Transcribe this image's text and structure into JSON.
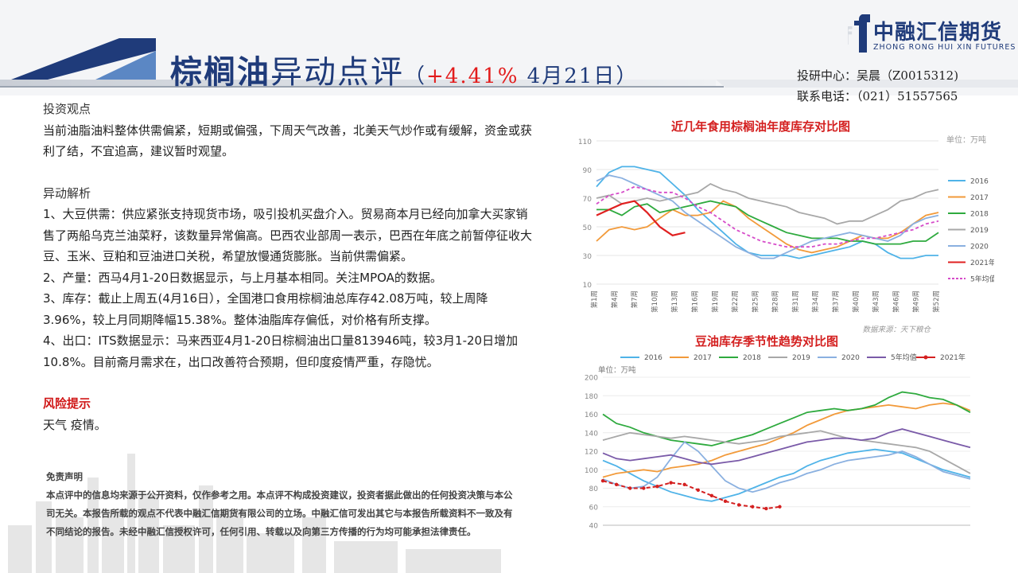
{
  "header": {
    "title_main": "棕榈油",
    "title_sub": "异动点评",
    "title_paren_open": "（",
    "title_pct": "+4.41%",
    "title_date": " 4月21日",
    "title_paren_close": "）"
  },
  "logo": {
    "cn": "中融汇信期货",
    "en": "ZHONG RONG HUI XIN FUTURES",
    "brand_color": "#1f3b7a"
  },
  "contact": {
    "line1": "投研中心：吴晨（Z0015312)",
    "line2": "联系电话：（021）51557565"
  },
  "content": {
    "view_title": "投资观点",
    "view_text": "当前油脂油料整体供需偏紧，短期或偏强，下周天气改善，北美天气炒作或有缓解，资金或获利了结，不宜追高，建议暂时观望。",
    "analysis_title": "异动解析",
    "items": [
      "1、大豆供需：供应紧张支持现货市场，吸引投机买盘介入。贸易商本月已经向加拿大买家销售了两船乌克兰油菜籽，该数量异常偏高。巴西农业部周一表示，巴西在年底之前暂停征收大豆、玉米、豆粕和豆油进口关税，希望放慢通货膨胀。当前供需偏紧。",
      "2、产量：西马4月1-20日数据显示，与上月基本相同。关注MPOA的数据。",
      "3、库存：截止上周五(4月16日），全国港口食用棕榈油总库存42.08万吨，较上周降3.96%，较上月同期降幅15.38%。整体油脂库存偏低，对价格有所支撑。",
      "4、出口：ITS数据显示：马来西亚4月1-20日棕榈油出口量813946吨，较3月1-20日增加10.8%。目前斋月需求在，出口改善符合预期，但印度疫情严重，存隐忧。"
    ],
    "risk_title": "风险提示",
    "risk_text": "天气 疫情。",
    "disclaimer_title": "免责声明",
    "disclaimer_text": "本点评中的信息均来源于公开资料，仅作参考之用。本点评不构成投资建议，投资者据此做出的任何投资决策与本公司无关。本报告所载的观点不代表中融汇信期货有限公司的立场。中融汇信可发出其它与本报告所载资料不一致及有不同结论的报告。未经中融汇信授权许可，任何引用、转载以及向第三方传播的行为均可能承担法律责任。"
  },
  "chart_data": [
    {
      "type": "line",
      "title": "近几年食用棕榈油年度库存对比图",
      "unit": "单位：万吨",
      "source": "数据来源：天下粮仓",
      "ylim": [
        10,
        110
      ],
      "yticks": [
        "10",
        "30",
        "50",
        "70",
        "90",
        "110"
      ],
      "xticks": [
        "第1周",
        "第4周",
        "第7周",
        "第10周",
        "第13周",
        "第16周",
        "第19周",
        "第22周",
        "第25周",
        "第28周",
        "第31周",
        "第34周",
        "第37周",
        "第40周",
        "第43周",
        "第46周",
        "第49周",
        "第52周"
      ],
      "series": [
        {
          "name": "2016",
          "color": "#4fb3e8",
          "dash": false,
          "values": [
            78,
            88,
            92,
            92,
            90,
            88,
            80,
            72,
            62,
            54,
            46,
            38,
            32,
            30,
            30,
            30,
            28,
            30,
            32,
            34,
            36,
            40,
            38,
            32,
            28,
            28,
            30,
            30
          ]
        },
        {
          "name": "2017",
          "color": "#f29a3a",
          "dash": false,
          "values": [
            40,
            48,
            50,
            48,
            50,
            56,
            62,
            58,
            58,
            60,
            68,
            64,
            56,
            50,
            44,
            38,
            34,
            32,
            34,
            36,
            40,
            44,
            42,
            42,
            46,
            52,
            58,
            60
          ]
        },
        {
          "name": "2018",
          "color": "#2eaa3e",
          "dash": false,
          "values": [
            62,
            62,
            58,
            64,
            66,
            60,
            62,
            64,
            66,
            68,
            66,
            64,
            58,
            54,
            50,
            46,
            44,
            42,
            42,
            42,
            40,
            40,
            38,
            38,
            38,
            40,
            40,
            46
          ]
        },
        {
          "name": "2019",
          "color": "#a8a8a8",
          "dash": false,
          "values": [
            70,
            72,
            66,
            68,
            70,
            68,
            70,
            72,
            74,
            80,
            76,
            74,
            70,
            68,
            66,
            64,
            60,
            58,
            56,
            52,
            54,
            54,
            58,
            62,
            68,
            70,
            74,
            76
          ]
        },
        {
          "name": "2020",
          "color": "#8ab0e0",
          "dash": false,
          "values": [
            82,
            86,
            84,
            80,
            76,
            72,
            68,
            60,
            54,
            48,
            42,
            36,
            32,
            28,
            28,
            32,
            36,
            40,
            42,
            44,
            46,
            44,
            42,
            40,
            44,
            52,
            56,
            58
          ]
        },
        {
          "name": "2021年",
          "color": "#e02020",
          "dash": false,
          "values": [
            58,
            62,
            66,
            68,
            60,
            50,
            44,
            46
          ]
        },
        {
          "name": "5年均值",
          "color": "#d64bc9",
          "dash": true,
          "values": [
            66,
            72,
            74,
            78,
            76,
            74,
            74,
            70,
            64,
            60,
            54,
            48,
            44,
            40,
            38,
            36,
            36,
            36,
            38,
            38,
            40,
            42,
            42,
            44,
            46,
            48,
            52,
            54
          ]
        }
      ]
    },
    {
      "type": "line",
      "title": "豆油库存季节性趋势对比图",
      "unit": "单位：万吨",
      "ylim": [
        40,
        200
      ],
      "yticks": [
        "40",
        "60",
        "80",
        "100",
        "120",
        "140",
        "160",
        "180",
        "200"
      ],
      "legend": [
        "2016",
        "2017",
        "2018",
        "2019",
        "2020",
        "5年均值",
        "2021年"
      ],
      "series": [
        {
          "name": "2016",
          "color": "#4fb3e8",
          "values": [
            110,
            104,
            96,
            88,
            82,
            76,
            72,
            68,
            66,
            70,
            74,
            80,
            86,
            92,
            96,
            104,
            110,
            114,
            118,
            120,
            122,
            120,
            118,
            112,
            106,
            100,
            96,
            92
          ]
        },
        {
          "name": "2017",
          "color": "#f29a3a",
          "values": [
            92,
            96,
            98,
            100,
            98,
            102,
            104,
            106,
            110,
            116,
            120,
            124,
            128,
            134,
            140,
            148,
            154,
            160,
            164,
            166,
            168,
            170,
            168,
            166,
            170,
            172,
            170,
            164
          ]
        },
        {
          "name": "2018",
          "color": "#2eaa3e",
          "values": [
            160,
            150,
            146,
            140,
            136,
            132,
            130,
            128,
            126,
            130,
            134,
            138,
            144,
            150,
            156,
            162,
            164,
            166,
            164,
            166,
            170,
            178,
            184,
            182,
            178,
            176,
            170,
            162
          ]
        },
        {
          "name": "2019",
          "color": "#a8a8a8",
          "values": [
            132,
            136,
            140,
            138,
            136,
            134,
            136,
            134,
            132,
            130,
            128,
            130,
            132,
            136,
            138,
            140,
            142,
            138,
            134,
            132,
            130,
            128,
            126,
            124,
            120,
            112,
            104,
            96
          ]
        },
        {
          "name": "2020",
          "color": "#8ab0e0",
          "values": [
            90,
            84,
            80,
            82,
            92,
            112,
            130,
            120,
            104,
            88,
            80,
            76,
            80,
            86,
            90,
            96,
            100,
            106,
            110,
            112,
            114,
            116,
            120,
            114,
            106,
            98,
            94,
            90
          ]
        },
        {
          "name": "5年均值",
          "color": "#7a5aa8",
          "values": [
            118,
            112,
            110,
            112,
            114,
            116,
            112,
            108,
            106,
            108,
            110,
            114,
            118,
            122,
            126,
            130,
            132,
            134,
            134,
            132,
            134,
            140,
            144,
            140,
            136,
            132,
            128,
            124
          ]
        },
        {
          "name": "2021年",
          "color": "#d42020",
          "values": [
            88,
            84,
            80,
            80,
            82,
            86,
            84,
            78,
            72,
            66,
            62,
            60,
            58,
            60
          ]
        }
      ]
    }
  ]
}
